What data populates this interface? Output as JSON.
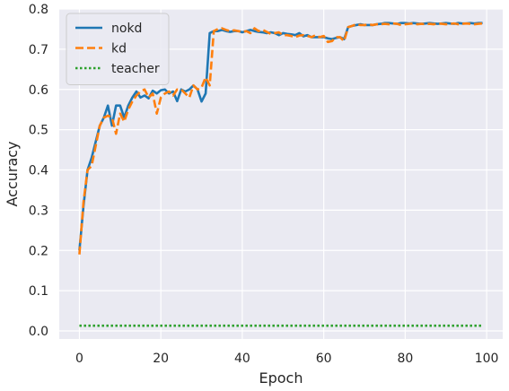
{
  "chart_data": {
    "type": "line",
    "xlabel": "Epoch",
    "ylabel": "Accuracy",
    "xlim": [
      -4.95,
      103.95
    ],
    "ylim": [
      -0.02,
      0.8
    ],
    "xticks": [
      0,
      20,
      40,
      60,
      80,
      100
    ],
    "yticks": [
      0.0,
      0.1,
      0.2,
      0.3,
      0.4,
      0.5,
      0.6,
      0.7,
      0.8
    ],
    "xtick_labels": [
      "0",
      "20",
      "40",
      "60",
      "80",
      "100"
    ],
    "ytick_labels": [
      "0.0",
      "0.1",
      "0.2",
      "0.3",
      "0.4",
      "0.5",
      "0.6",
      "0.7",
      "0.8"
    ],
    "grid": true,
    "legend_position": "top-left",
    "series": [
      {
        "name": "nokd",
        "color": "#1f77b4",
        "style": "solid",
        "x": [
          0,
          1,
          2,
          3,
          4,
          5,
          6,
          7,
          8,
          9,
          10,
          11,
          12,
          13,
          14,
          15,
          16,
          17,
          18,
          19,
          20,
          21,
          22,
          23,
          24,
          25,
          26,
          27,
          28,
          29,
          30,
          31,
          32,
          33,
          34,
          35,
          36,
          37,
          38,
          39,
          40,
          41,
          42,
          43,
          44,
          45,
          46,
          47,
          48,
          49,
          50,
          51,
          52,
          53,
          54,
          55,
          56,
          57,
          58,
          59,
          60,
          61,
          62,
          63,
          64,
          65,
          66,
          67,
          68,
          69,
          70,
          71,
          72,
          73,
          74,
          75,
          76,
          77,
          78,
          79,
          80,
          81,
          82,
          83,
          84,
          85,
          86,
          87,
          88,
          89,
          90,
          91,
          92,
          93,
          94,
          95,
          96,
          97,
          98,
          99
        ],
        "y": [
          0.2,
          0.31,
          0.4,
          0.43,
          0.47,
          0.51,
          0.53,
          0.56,
          0.51,
          0.56,
          0.56,
          0.53,
          0.56,
          0.58,
          0.595,
          0.58,
          0.585,
          0.578,
          0.597,
          0.59,
          0.598,
          0.6,
          0.59,
          0.595,
          0.571,
          0.6,
          0.595,
          0.6,
          0.61,
          0.6,
          0.57,
          0.59,
          0.74,
          0.745,
          0.745,
          0.748,
          0.745,
          0.743,
          0.745,
          0.745,
          0.742,
          0.745,
          0.748,
          0.745,
          0.743,
          0.742,
          0.74,
          0.742,
          0.74,
          0.735,
          0.74,
          0.738,
          0.737,
          0.735,
          0.74,
          0.732,
          0.735,
          0.73,
          0.73,
          0.73,
          0.73,
          0.727,
          0.725,
          0.728,
          0.73,
          0.725,
          0.755,
          0.758,
          0.76,
          0.762,
          0.76,
          0.76,
          0.76,
          0.762,
          0.763,
          0.765,
          0.765,
          0.764,
          0.763,
          0.765,
          0.765,
          0.764,
          0.765,
          0.764,
          0.763,
          0.764,
          0.765,
          0.764,
          0.763,
          0.764,
          0.765,
          0.764,
          0.763,
          0.765,
          0.764,
          0.764,
          0.765,
          0.764,
          0.765,
          0.765
        ]
      },
      {
        "name": "kd",
        "color": "#ff7f0e",
        "style": "dashed",
        "x": [
          0,
          1,
          2,
          3,
          4,
          5,
          6,
          7,
          8,
          9,
          10,
          11,
          12,
          13,
          14,
          15,
          16,
          17,
          18,
          19,
          20,
          21,
          22,
          23,
          24,
          25,
          26,
          27,
          28,
          29,
          30,
          31,
          32,
          33,
          34,
          35,
          36,
          37,
          38,
          39,
          40,
          41,
          42,
          43,
          44,
          45,
          46,
          47,
          48,
          49,
          50,
          51,
          52,
          53,
          54,
          55,
          56,
          57,
          58,
          59,
          60,
          61,
          62,
          63,
          64,
          65,
          66,
          67,
          68,
          69,
          70,
          71,
          72,
          73,
          74,
          75,
          76,
          77,
          78,
          79,
          80,
          81,
          82,
          83,
          84,
          85,
          86,
          87,
          88,
          89,
          90,
          91,
          92,
          93,
          94,
          95,
          96,
          97,
          98,
          99
        ],
        "y": [
          0.19,
          0.32,
          0.4,
          0.41,
          0.46,
          0.51,
          0.53,
          0.535,
          0.53,
          0.49,
          0.54,
          0.52,
          0.55,
          0.57,
          0.585,
          0.595,
          0.6,
          0.58,
          0.59,
          0.54,
          0.58,
          0.59,
          0.595,
          0.585,
          0.6,
          0.6,
          0.59,
          0.58,
          0.61,
          0.6,
          0.605,
          0.63,
          0.61,
          0.745,
          0.75,
          0.752,
          0.748,
          0.745,
          0.747,
          0.745,
          0.743,
          0.745,
          0.74,
          0.752,
          0.745,
          0.748,
          0.743,
          0.738,
          0.74,
          0.742,
          0.735,
          0.735,
          0.733,
          0.73,
          0.734,
          0.735,
          0.733,
          0.73,
          0.735,
          0.73,
          0.733,
          0.718,
          0.72,
          0.73,
          0.73,
          0.72,
          0.755,
          0.758,
          0.762,
          0.76,
          0.76,
          0.762,
          0.76,
          0.762,
          0.762,
          0.763,
          0.762,
          0.764,
          0.763,
          0.76,
          0.762,
          0.763,
          0.764,
          0.762,
          0.763,
          0.762,
          0.763,
          0.762,
          0.764,
          0.763,
          0.762,
          0.763,
          0.764,
          0.762,
          0.763,
          0.764,
          0.763,
          0.762,
          0.763,
          0.764
        ]
      },
      {
        "name": "teacher",
        "color": "#2ca02c",
        "style": "dotted",
        "x": [
          0,
          99
        ],
        "y": [
          0.013,
          0.013
        ]
      }
    ]
  }
}
